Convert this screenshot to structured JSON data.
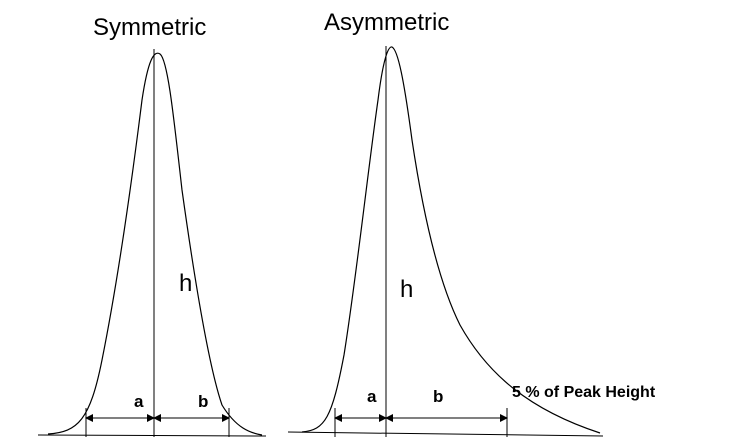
{
  "symmetric": {
    "title": "Symmetric",
    "height_label": "h",
    "left_width_label": "a",
    "right_width_label": "b"
  },
  "asymmetric": {
    "title": "Asymmetric",
    "height_label": "h",
    "left_width_label": "a",
    "right_width_label": "b"
  },
  "threshold_note": "5 % of Peak Height"
}
